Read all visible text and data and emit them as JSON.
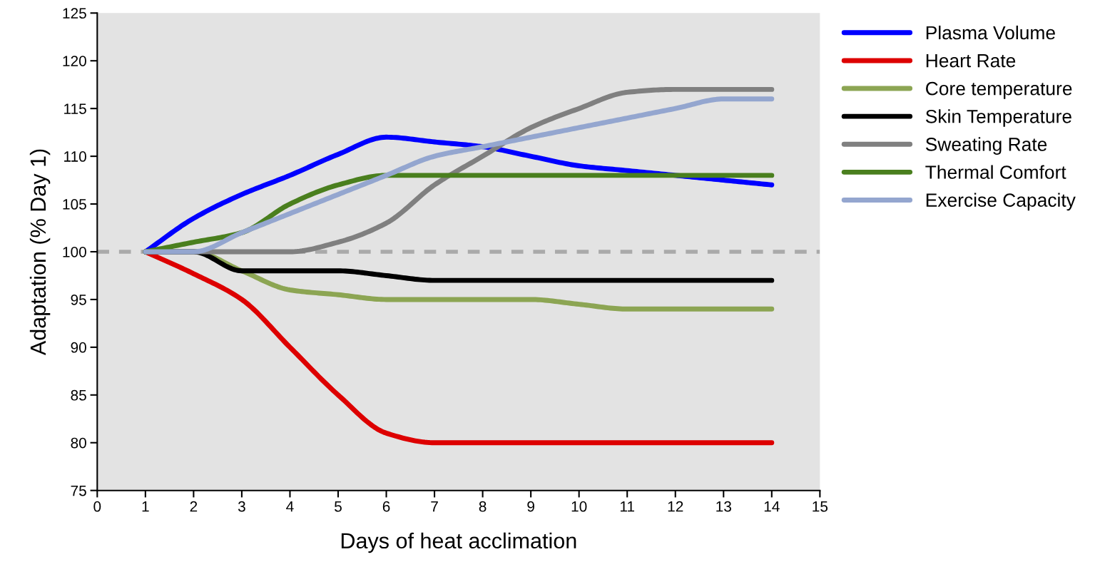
{
  "chart_data": {
    "type": "line",
    "xlabel": "Days of heat acclimation",
    "ylabel": "Adaptation (% Day 1)",
    "x": [
      1,
      2,
      3,
      4,
      5,
      6,
      7,
      8,
      9,
      10,
      11,
      12,
      13,
      14
    ],
    "xlim": [
      0,
      15
    ],
    "xticks": [
      0,
      1,
      2,
      3,
      4,
      5,
      6,
      7,
      8,
      9,
      10,
      11,
      12,
      13,
      14,
      15
    ],
    "ylim": [
      75,
      125
    ],
    "yticks": [
      75,
      80,
      85,
      90,
      95,
      100,
      105,
      110,
      115,
      120,
      125
    ],
    "grid": false,
    "legend": "right",
    "marker": "none",
    "line_style": "solid",
    "ref_lines": [
      {
        "axis": "y",
        "value": 100,
        "color": "#aaaaaa",
        "line_style": "dashed"
      }
    ],
    "series": [
      {
        "name": "Plasma Volume",
        "color": "#0000ff",
        "values": [
          100,
          103.5,
          106,
          108,
          110.2,
          112,
          111.5,
          111,
          110,
          109,
          108.5,
          108,
          107.5,
          107
        ]
      },
      {
        "name": "Heart Rate",
        "color": "#dd0000",
        "values": [
          100,
          97.7,
          95,
          90,
          85,
          81,
          80,
          80,
          80,
          80,
          80,
          80,
          80,
          80
        ]
      },
      {
        "name": "Core temperature",
        "color": "#8ca553",
        "values": [
          100,
          100,
          98,
          96,
          95.5,
          95,
          95,
          95,
          95,
          94.5,
          94,
          94,
          94,
          94
        ]
      },
      {
        "name": "Skin Temperature",
        "color": "#000000",
        "values": [
          100,
          100,
          98,
          98,
          98,
          97.5,
          97,
          97,
          97,
          97,
          97,
          97,
          97,
          97
        ]
      },
      {
        "name": "Sweating Rate",
        "color": "#808080",
        "values": [
          100,
          100,
          100,
          100,
          101,
          103,
          107,
          110,
          113,
          115,
          116.7,
          117,
          117,
          117
        ]
      },
      {
        "name": "Thermal Comfort",
        "color": "#4a7f1e",
        "values": [
          100,
          101,
          102,
          105,
          107,
          108,
          108,
          108,
          108,
          108,
          108,
          108,
          108,
          108
        ]
      },
      {
        "name": "Exercise Capacity",
        "color": "#94a6cf",
        "values": [
          100,
          100,
          102,
          104,
          106,
          108,
          110,
          111,
          112,
          113,
          114,
          115,
          116,
          116
        ]
      }
    ]
  }
}
